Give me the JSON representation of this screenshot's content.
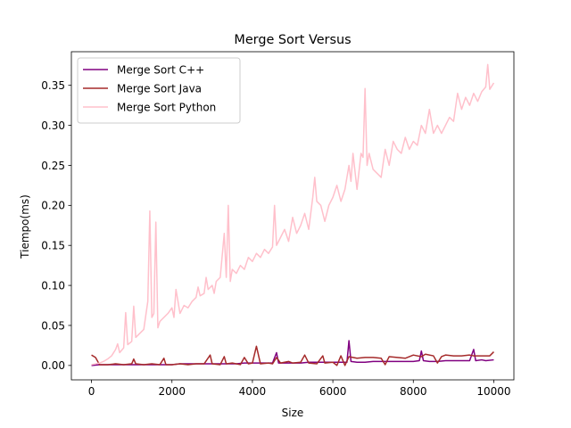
{
  "chart_data": {
    "type": "line",
    "title": "Merge Sort Versus",
    "xlabel": "Size",
    "ylabel": "Tiempo(ms)",
    "xlim": [
      -500,
      10500
    ],
    "ylim": [
      -0.018,
      0.392
    ],
    "x_ticks": [
      0,
      2000,
      4000,
      6000,
      8000,
      10000
    ],
    "y_ticks": [
      0.0,
      0.05,
      0.1,
      0.15,
      0.2,
      0.25,
      0.3,
      0.35
    ],
    "grid": false,
    "legend_position": "top-left",
    "series": [
      {
        "name": "Merge Sort C++",
        "color": "#800080",
        "points": [
          [
            0,
            0.0
          ],
          [
            200,
            0.001
          ],
          [
            400,
            0.001
          ],
          [
            600,
            0.001
          ],
          [
            800,
            0.001
          ],
          [
            1000,
            0.001
          ],
          [
            1200,
            0.001
          ],
          [
            1400,
            0.001
          ],
          [
            1600,
            0.001
          ],
          [
            1800,
            0.001
          ],
          [
            2000,
            0.001
          ],
          [
            2200,
            0.002
          ],
          [
            2400,
            0.002
          ],
          [
            2600,
            0.002
          ],
          [
            2800,
            0.002
          ],
          [
            3000,
            0.002
          ],
          [
            3200,
            0.002
          ],
          [
            3400,
            0.002
          ],
          [
            3600,
            0.002
          ],
          [
            3800,
            0.003
          ],
          [
            4000,
            0.003
          ],
          [
            4200,
            0.003
          ],
          [
            4400,
            0.003
          ],
          [
            4500,
            0.003
          ],
          [
            4600,
            0.016
          ],
          [
            4650,
            0.003
          ],
          [
            4800,
            0.003
          ],
          [
            5000,
            0.003
          ],
          [
            5200,
            0.003
          ],
          [
            5400,
            0.004
          ],
          [
            5600,
            0.004
          ],
          [
            5800,
            0.004
          ],
          [
            6000,
            0.004
          ],
          [
            6200,
            0.004
          ],
          [
            6350,
            0.004
          ],
          [
            6400,
            0.031
          ],
          [
            6450,
            0.005
          ],
          [
            6600,
            0.004
          ],
          [
            6800,
            0.004
          ],
          [
            7000,
            0.005
          ],
          [
            7200,
            0.005
          ],
          [
            7400,
            0.005
          ],
          [
            7600,
            0.005
          ],
          [
            7800,
            0.005
          ],
          [
            8000,
            0.005
          ],
          [
            8150,
            0.006
          ],
          [
            8200,
            0.018
          ],
          [
            8250,
            0.006
          ],
          [
            8400,
            0.005
          ],
          [
            8600,
            0.005
          ],
          [
            8800,
            0.006
          ],
          [
            9000,
            0.006
          ],
          [
            9200,
            0.006
          ],
          [
            9400,
            0.006
          ],
          [
            9500,
            0.02
          ],
          [
            9550,
            0.006
          ],
          [
            9700,
            0.007
          ],
          [
            9800,
            0.006
          ],
          [
            10000,
            0.007
          ]
        ]
      },
      {
        "name": "Merge Sort Java",
        "color": "#a52a2a",
        "points": [
          [
            0,
            0.013
          ],
          [
            100,
            0.01
          ],
          [
            200,
            0.001
          ],
          [
            400,
            0.001
          ],
          [
            600,
            0.002
          ],
          [
            800,
            0.001
          ],
          [
            1000,
            0.002
          ],
          [
            1050,
            0.008
          ],
          [
            1100,
            0.002
          ],
          [
            1300,
            0.001
          ],
          [
            1500,
            0.002
          ],
          [
            1700,
            0.001
          ],
          [
            1800,
            0.009
          ],
          [
            1850,
            0.001
          ],
          [
            2000,
            0.001
          ],
          [
            2200,
            0.002
          ],
          [
            2400,
            0.001
          ],
          [
            2600,
            0.002
          ],
          [
            2800,
            0.002
          ],
          [
            2950,
            0.013
          ],
          [
            3000,
            0.002
          ],
          [
            3200,
            0.001
          ],
          [
            3300,
            0.011
          ],
          [
            3350,
            0.002
          ],
          [
            3500,
            0.003
          ],
          [
            3700,
            0.001
          ],
          [
            3800,
            0.01
          ],
          [
            3900,
            0.002
          ],
          [
            4000,
            0.003
          ],
          [
            4100,
            0.024
          ],
          [
            4200,
            0.002
          ],
          [
            4400,
            0.003
          ],
          [
            4500,
            0.002
          ],
          [
            4600,
            0.01
          ],
          [
            4700,
            0.003
          ],
          [
            4900,
            0.005
          ],
          [
            5000,
            0.003
          ],
          [
            5200,
            0.004
          ],
          [
            5300,
            0.013
          ],
          [
            5400,
            0.003
          ],
          [
            5600,
            0.002
          ],
          [
            5750,
            0.012
          ],
          [
            5800,
            0.003
          ],
          [
            6000,
            0.004
          ],
          [
            6100,
            0.0
          ],
          [
            6200,
            0.012
          ],
          [
            6300,
            0.0
          ],
          [
            6400,
            0.011
          ],
          [
            6600,
            0.009
          ],
          [
            6800,
            0.01
          ],
          [
            7000,
            0.01
          ],
          [
            7200,
            0.009
          ],
          [
            7300,
            0.001
          ],
          [
            7400,
            0.011
          ],
          [
            7600,
            0.01
          ],
          [
            7800,
            0.009
          ],
          [
            8000,
            0.013
          ],
          [
            8200,
            0.011
          ],
          [
            8300,
            0.014
          ],
          [
            8500,
            0.012
          ],
          [
            8600,
            0.003
          ],
          [
            8700,
            0.011
          ],
          [
            8800,
            0.013
          ],
          [
            9000,
            0.012
          ],
          [
            9200,
            0.012
          ],
          [
            9400,
            0.013
          ],
          [
            9500,
            0.012
          ],
          [
            9600,
            0.012
          ],
          [
            9800,
            0.012
          ],
          [
            9900,
            0.012
          ],
          [
            10000,
            0.017
          ]
        ]
      },
      {
        "name": "Merge Sort Python",
        "color": "#ffc0cb",
        "points": [
          [
            0,
            0.001
          ],
          [
            100,
            0.002
          ],
          [
            200,
            0.003
          ],
          [
            300,
            0.005
          ],
          [
            400,
            0.008
          ],
          [
            500,
            0.012
          ],
          [
            600,
            0.02
          ],
          [
            650,
            0.027
          ],
          [
            700,
            0.016
          ],
          [
            800,
            0.022
          ],
          [
            850,
            0.066
          ],
          [
            900,
            0.026
          ],
          [
            1000,
            0.03
          ],
          [
            1050,
            0.074
          ],
          [
            1100,
            0.035
          ],
          [
            1200,
            0.04
          ],
          [
            1300,
            0.045
          ],
          [
            1400,
            0.08
          ],
          [
            1450,
            0.193
          ],
          [
            1500,
            0.06
          ],
          [
            1550,
            0.065
          ],
          [
            1600,
            0.179
          ],
          [
            1650,
            0.047
          ],
          [
            1700,
            0.055
          ],
          [
            1800,
            0.06
          ],
          [
            1900,
            0.065
          ],
          [
            2000,
            0.072
          ],
          [
            2050,
            0.06
          ],
          [
            2100,
            0.095
          ],
          [
            2200,
            0.065
          ],
          [
            2300,
            0.075
          ],
          [
            2400,
            0.072
          ],
          [
            2500,
            0.08
          ],
          [
            2600,
            0.085
          ],
          [
            2650,
            0.098
          ],
          [
            2700,
            0.087
          ],
          [
            2800,
            0.09
          ],
          [
            2850,
            0.11
          ],
          [
            2900,
            0.095
          ],
          [
            3000,
            0.1
          ],
          [
            3050,
            0.09
          ],
          [
            3100,
            0.105
          ],
          [
            3200,
            0.11
          ],
          [
            3300,
            0.165
          ],
          [
            3350,
            0.11
          ],
          [
            3400,
            0.2
          ],
          [
            3450,
            0.105
          ],
          [
            3500,
            0.12
          ],
          [
            3600,
            0.115
          ],
          [
            3700,
            0.125
          ],
          [
            3800,
            0.12
          ],
          [
            3900,
            0.135
          ],
          [
            4000,
            0.13
          ],
          [
            4100,
            0.14
          ],
          [
            4200,
            0.135
          ],
          [
            4300,
            0.145
          ],
          [
            4400,
            0.14
          ],
          [
            4500,
            0.148
          ],
          [
            4550,
            0.2
          ],
          [
            4600,
            0.15
          ],
          [
            4700,
            0.16
          ],
          [
            4800,
            0.17
          ],
          [
            4900,
            0.155
          ],
          [
            5000,
            0.185
          ],
          [
            5100,
            0.165
          ],
          [
            5200,
            0.175
          ],
          [
            5300,
            0.19
          ],
          [
            5400,
            0.17
          ],
          [
            5500,
            0.21
          ],
          [
            5550,
            0.235
          ],
          [
            5600,
            0.205
          ],
          [
            5700,
            0.2
          ],
          [
            5800,
            0.18
          ],
          [
            5900,
            0.2
          ],
          [
            6000,
            0.21
          ],
          [
            6100,
            0.225
          ],
          [
            6200,
            0.205
          ],
          [
            6300,
            0.22
          ],
          [
            6400,
            0.25
          ],
          [
            6450,
            0.23
          ],
          [
            6500,
            0.265
          ],
          [
            6600,
            0.22
          ],
          [
            6700,
            0.265
          ],
          [
            6750,
            0.26
          ],
          [
            6800,
            0.346
          ],
          [
            6850,
            0.25
          ],
          [
            6900,
            0.265
          ],
          [
            7000,
            0.245
          ],
          [
            7100,
            0.24
          ],
          [
            7200,
            0.235
          ],
          [
            7300,
            0.27
          ],
          [
            7400,
            0.25
          ],
          [
            7500,
            0.28
          ],
          [
            7600,
            0.27
          ],
          [
            7700,
            0.265
          ],
          [
            7800,
            0.285
          ],
          [
            7900,
            0.27
          ],
          [
            8000,
            0.28
          ],
          [
            8100,
            0.275
          ],
          [
            8200,
            0.3
          ],
          [
            8300,
            0.29
          ],
          [
            8400,
            0.32
          ],
          [
            8500,
            0.29
          ],
          [
            8600,
            0.3
          ],
          [
            8700,
            0.29
          ],
          [
            8800,
            0.3
          ],
          [
            8900,
            0.31
          ],
          [
            9000,
            0.305
          ],
          [
            9100,
            0.34
          ],
          [
            9200,
            0.32
          ],
          [
            9300,
            0.335
          ],
          [
            9400,
            0.325
          ],
          [
            9500,
            0.34
          ],
          [
            9600,
            0.33
          ],
          [
            9700,
            0.342
          ],
          [
            9800,
            0.348
          ],
          [
            9850,
            0.376
          ],
          [
            9900,
            0.345
          ],
          [
            10000,
            0.353
          ]
        ]
      }
    ]
  }
}
